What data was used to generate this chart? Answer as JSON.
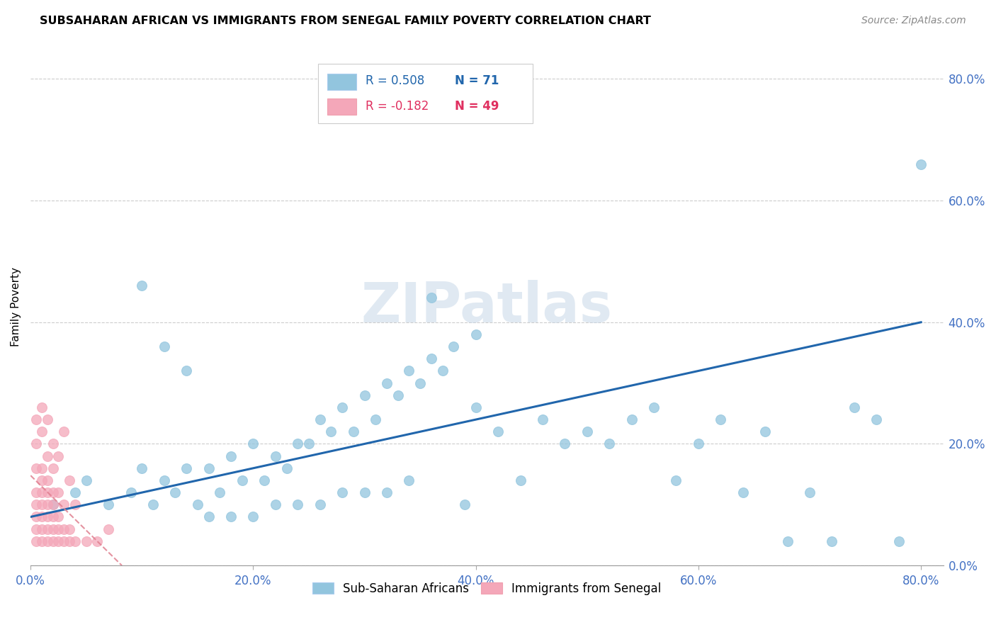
{
  "title": "SUBSAHARAN AFRICAN VS IMMIGRANTS FROM SENEGAL FAMILY POVERTY CORRELATION CHART",
  "source": "Source: ZipAtlas.com",
  "ylabel": "Family Poverty",
  "blue_label": "Sub-Saharan Africans",
  "pink_label": "Immigrants from Senegal",
  "legend_r_blue": "R = 0.508",
  "legend_n_blue": "N = 71",
  "legend_r_pink": "R = -0.182",
  "legend_n_pink": "N = 49",
  "blue_color": "#92c5de",
  "pink_color": "#f4a7b9",
  "blue_line_color": "#2166ac",
  "pink_line_color": "#e08090",
  "watermark": "ZIPatlas",
  "xlim": [
    0.0,
    0.82
  ],
  "ylim": [
    0.0,
    0.85
  ],
  "tick_vals": [
    0.0,
    0.2,
    0.4,
    0.6,
    0.8
  ],
  "tick_labels": [
    "0.0%",
    "20.0%",
    "40.0%",
    "60.0%",
    "80.0%"
  ],
  "blue_scatter_x": [
    0.02,
    0.04,
    0.05,
    0.07,
    0.09,
    0.1,
    0.11,
    0.12,
    0.13,
    0.14,
    0.15,
    0.16,
    0.17,
    0.18,
    0.19,
    0.2,
    0.21,
    0.22,
    0.23,
    0.24,
    0.25,
    0.26,
    0.27,
    0.28,
    0.29,
    0.3,
    0.31,
    0.32,
    0.33,
    0.34,
    0.35,
    0.36,
    0.37,
    0.38,
    0.39,
    0.4,
    0.42,
    0.44,
    0.46,
    0.48,
    0.5,
    0.52,
    0.54,
    0.56,
    0.58,
    0.6,
    0.62,
    0.64,
    0.66,
    0.68,
    0.7,
    0.72,
    0.74,
    0.76,
    0.78,
    0.8,
    0.1,
    0.12,
    0.14,
    0.16,
    0.18,
    0.2,
    0.22,
    0.24,
    0.26,
    0.28,
    0.3,
    0.32,
    0.34,
    0.36,
    0.4
  ],
  "blue_scatter_y": [
    0.1,
    0.12,
    0.14,
    0.1,
    0.12,
    0.16,
    0.1,
    0.14,
    0.12,
    0.16,
    0.1,
    0.16,
    0.12,
    0.18,
    0.14,
    0.2,
    0.14,
    0.18,
    0.16,
    0.2,
    0.2,
    0.24,
    0.22,
    0.26,
    0.22,
    0.28,
    0.24,
    0.3,
    0.28,
    0.32,
    0.3,
    0.34,
    0.32,
    0.36,
    0.1,
    0.26,
    0.22,
    0.14,
    0.24,
    0.2,
    0.22,
    0.2,
    0.24,
    0.26,
    0.14,
    0.2,
    0.24,
    0.12,
    0.22,
    0.04,
    0.12,
    0.04,
    0.26,
    0.24,
    0.04,
    0.66,
    0.46,
    0.36,
    0.32,
    0.08,
    0.08,
    0.08,
    0.1,
    0.1,
    0.1,
    0.12,
    0.12,
    0.12,
    0.14,
    0.44,
    0.38
  ],
  "pink_scatter_x": [
    0.005,
    0.005,
    0.005,
    0.005,
    0.005,
    0.005,
    0.005,
    0.005,
    0.01,
    0.01,
    0.01,
    0.01,
    0.01,
    0.01,
    0.01,
    0.01,
    0.01,
    0.015,
    0.015,
    0.015,
    0.015,
    0.015,
    0.015,
    0.015,
    0.015,
    0.02,
    0.02,
    0.02,
    0.02,
    0.02,
    0.02,
    0.02,
    0.025,
    0.025,
    0.025,
    0.025,
    0.025,
    0.03,
    0.03,
    0.03,
    0.03,
    0.035,
    0.035,
    0.035,
    0.04,
    0.04,
    0.05,
    0.06,
    0.07
  ],
  "pink_scatter_y": [
    0.04,
    0.06,
    0.08,
    0.1,
    0.12,
    0.16,
    0.2,
    0.24,
    0.04,
    0.06,
    0.08,
    0.1,
    0.12,
    0.14,
    0.16,
    0.22,
    0.26,
    0.04,
    0.06,
    0.08,
    0.1,
    0.12,
    0.14,
    0.18,
    0.24,
    0.04,
    0.06,
    0.08,
    0.1,
    0.12,
    0.16,
    0.2,
    0.04,
    0.06,
    0.08,
    0.12,
    0.18,
    0.04,
    0.06,
    0.1,
    0.22,
    0.04,
    0.06,
    0.14,
    0.04,
    0.1,
    0.04,
    0.04,
    0.06
  ],
  "blue_line_x": [
    0.0,
    0.8
  ],
  "blue_line_y": [
    0.08,
    0.4
  ],
  "pink_line_x": [
    0.0,
    0.082
  ],
  "pink_line_y": [
    0.148,
    0.0
  ]
}
